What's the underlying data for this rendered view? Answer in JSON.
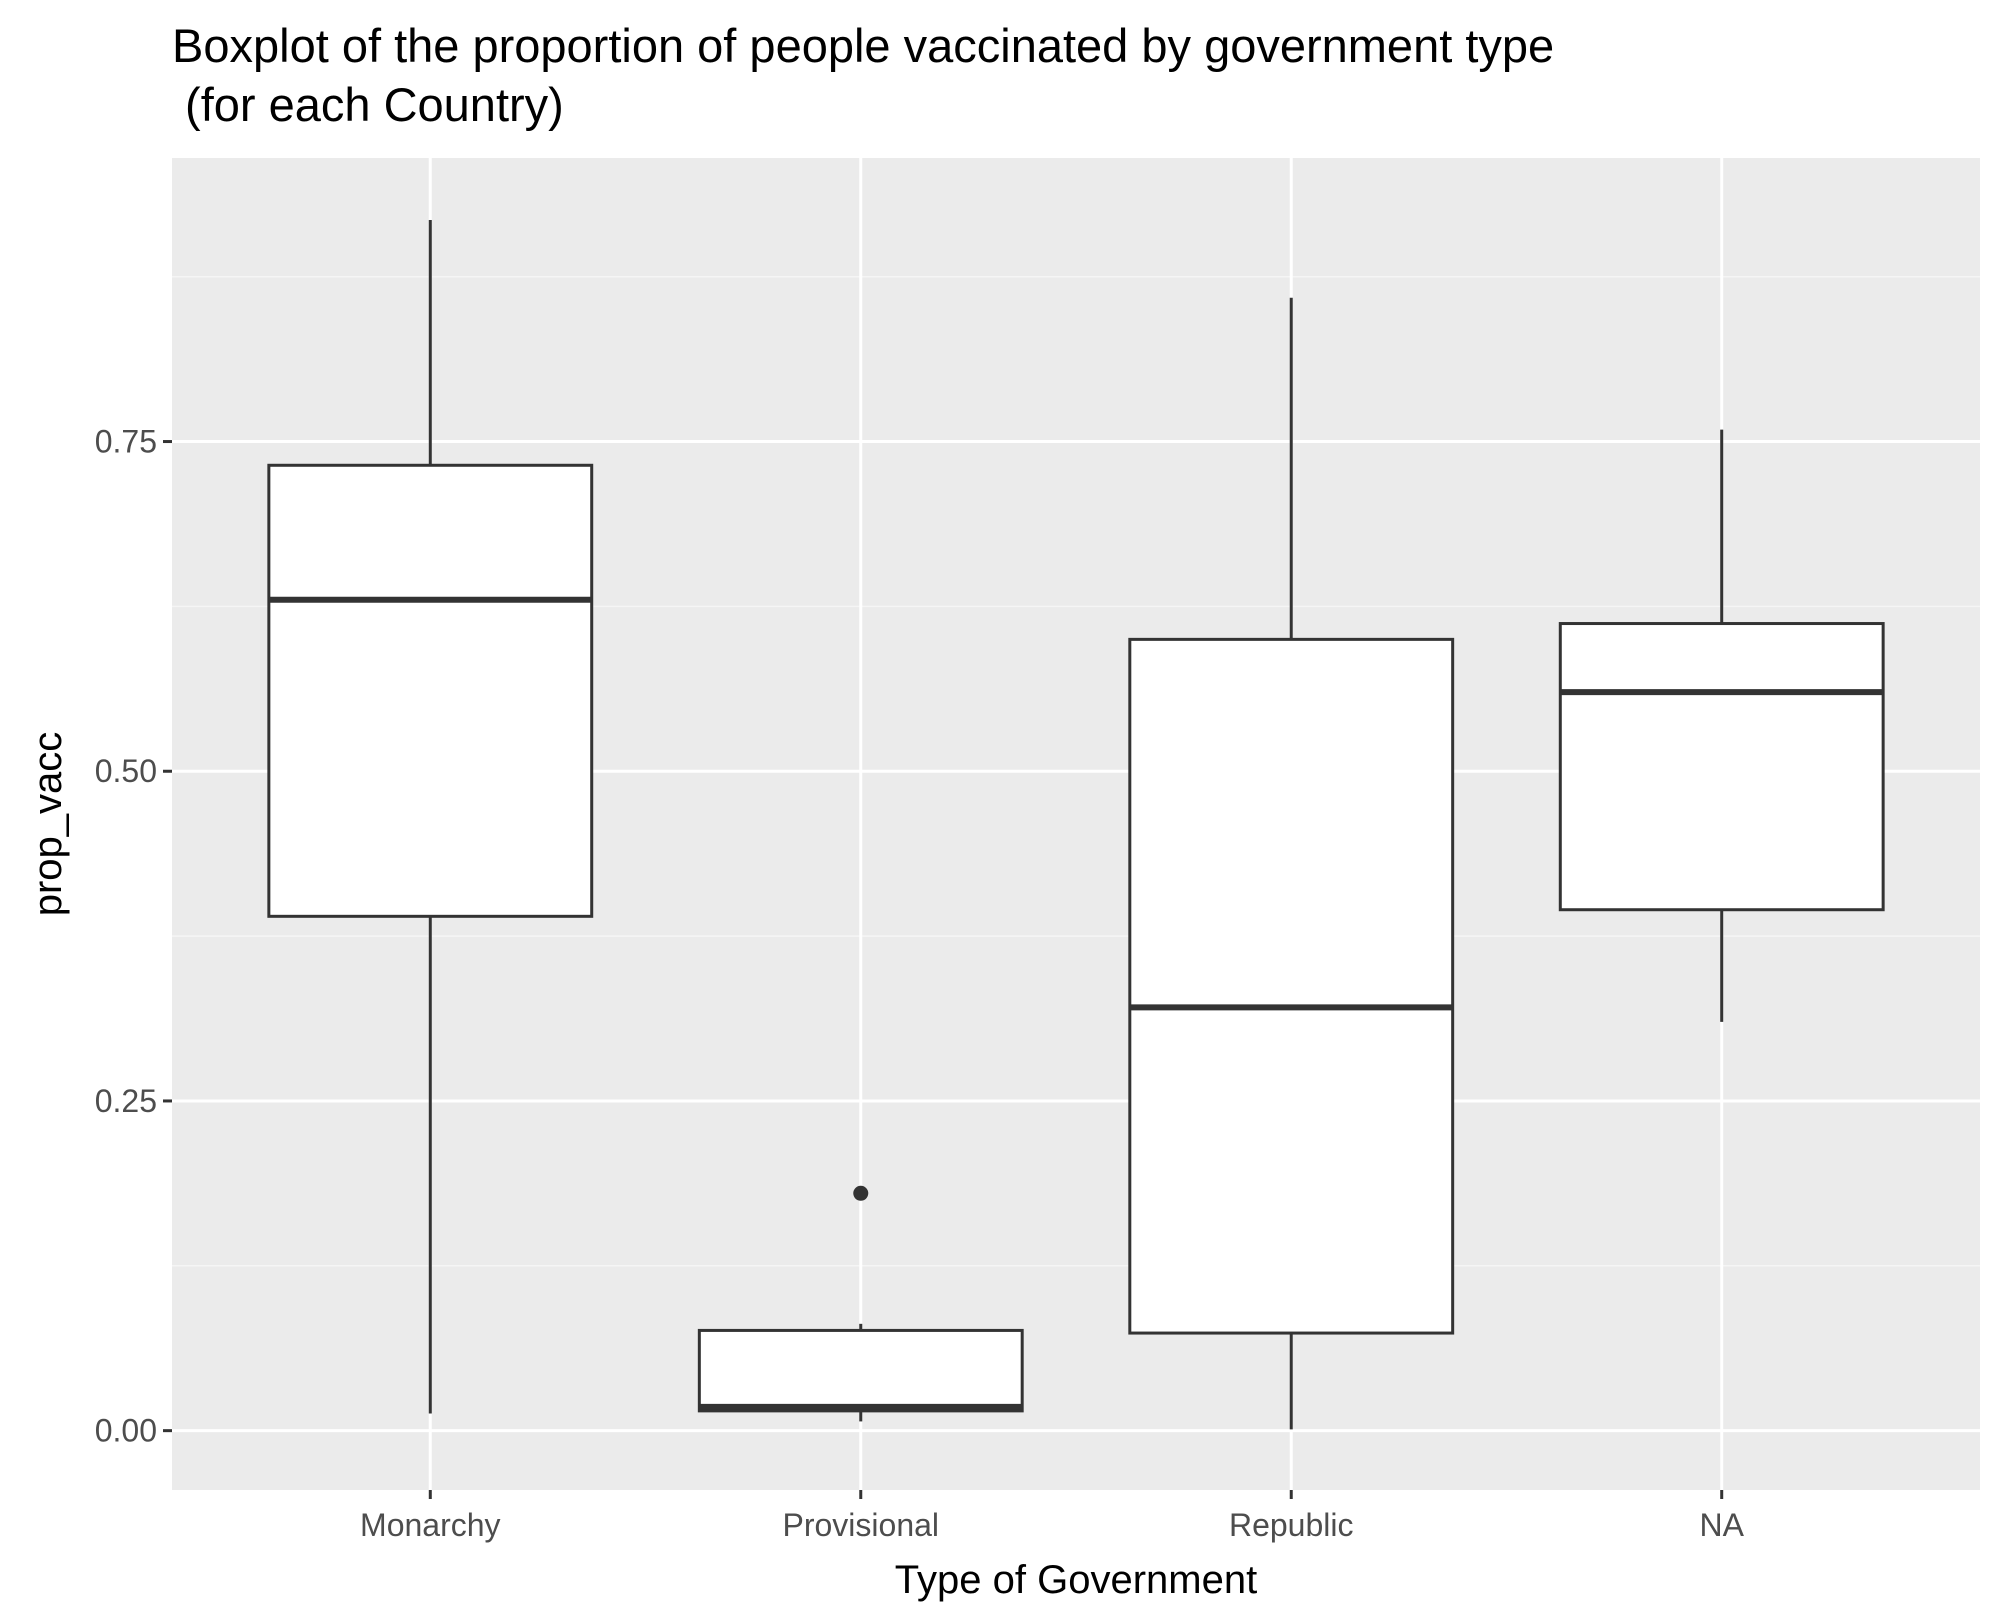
{
  "chart_data": {
    "type": "boxplot",
    "title": "Boxplot of the proportion of people vaccinated by government type",
    "subtitle": " (for each Country)",
    "xlabel": "Type of Government",
    "ylabel": "prop_vacc",
    "categories": [
      "Monarchy",
      "Provisional",
      "Republic",
      "NA"
    ],
    "ylim": [
      -0.045,
      0.965
    ],
    "yticks": [
      0.0,
      0.25,
      0.5,
      0.75
    ],
    "ytick_labels": [
      "0.00",
      "0.25",
      "0.50",
      "0.75"
    ],
    "grid": true,
    "legend": "none",
    "boxes": [
      {
        "category": "Monarchy",
        "whisker_low": 0.013,
        "q1": 0.39,
        "median": 0.63,
        "q3": 0.732,
        "whisker_high": 0.918,
        "outliers": []
      },
      {
        "category": "Provisional",
        "whisker_low": 0.007,
        "q1": 0.015,
        "median": 0.018,
        "q3": 0.076,
        "whisker_high": 0.081,
        "outliers": [
          0.18
        ]
      },
      {
        "category": "Republic",
        "whisker_low": 0.001,
        "q1": 0.074,
        "median": 0.321,
        "q3": 0.6,
        "whisker_high": 0.859,
        "outliers": []
      },
      {
        "category": "NA",
        "whisker_low": 0.31,
        "q1": 0.395,
        "median": 0.56,
        "q3": 0.612,
        "whisker_high": 0.759,
        "outliers": []
      }
    ],
    "colors": {
      "panel_background": "#ebebeb",
      "grid_major": "#ffffff",
      "grid_minor": "#f5f5f5",
      "box_fill": "#ffffff",
      "box_line": "#333333",
      "tick_text": "#4d4d4d"
    }
  }
}
